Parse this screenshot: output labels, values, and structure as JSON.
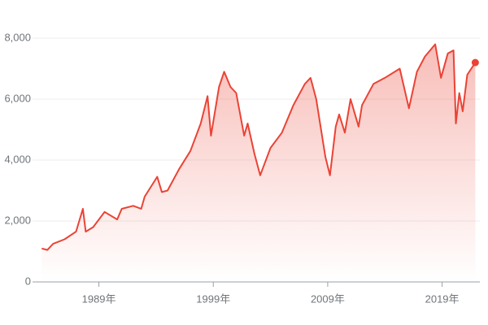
{
  "chart_data": {
    "type": "line",
    "x": [
      1984.0,
      1984.5,
      1985,
      1986,
      1987.0,
      1987.6,
      1987.85,
      1988.5,
      1989.5,
      1990.6,
      1991,
      1992,
      1992.7,
      1993,
      1994.1,
      1994.5,
      1995,
      1996,
      1997,
      1997.9,
      1998.5,
      1998.8,
      1999.5,
      1999.95,
      2000.5,
      2001,
      2001.7,
      2002,
      2002.6,
      2003.1,
      2004,
      2005,
      2006,
      2007,
      2007.5,
      2008,
      2008.8,
      2009.2,
      2009.7,
      2010,
      2010.5,
      2011,
      2011.7,
      2012,
      2013,
      2014,
      2015.3,
      2016.1,
      2016.8,
      2017.5,
      2018.4,
      2018.9,
      2019.5,
      2020.0,
      2020.2,
      2020.5,
      2020.8,
      2021.2,
      2021.9
    ],
    "values": [
      1100,
      1050,
      1250,
      1400,
      1650,
      2400,
      1650,
      1800,
      2300,
      2050,
      2400,
      2500,
      2400,
      2800,
      3450,
      2950,
      3000,
      3700,
      4300,
      5200,
      6100,
      4800,
      6400,
      6900,
      6400,
      6200,
      4800,
      5200,
      4200,
      3500,
      4400,
      4900,
      5800,
      6500,
      6700,
      6000,
      4100,
      3500,
      5100,
      5500,
      4900,
      6000,
      5100,
      5800,
      6500,
      6700,
      7000,
      5700,
      6900,
      7400,
      7800,
      6700,
      7500,
      7600,
      5200,
      6200,
      5600,
      6800,
      7200
    ],
    "color": "#ea4335",
    "xlim": [
      1983.2,
      2022.3
    ],
    "xticks": [
      {
        "value": 1989,
        "label": "1989年"
      },
      {
        "value": 1999,
        "label": "1999年"
      },
      {
        "value": 2009,
        "label": "2009年"
      },
      {
        "value": 2019,
        "label": "2019年"
      }
    ],
    "ylim": [
      0,
      8000
    ],
    "yticks": [
      0,
      {
        "value": 2000,
        "label": "2,000"
      },
      {
        "value": 4000,
        "label": "4,000"
      },
      {
        "value": 6000,
        "label": "6,000"
      },
      {
        "value": 8000,
        "label": "8,000"
      }
    ],
    "grid": true
  }
}
